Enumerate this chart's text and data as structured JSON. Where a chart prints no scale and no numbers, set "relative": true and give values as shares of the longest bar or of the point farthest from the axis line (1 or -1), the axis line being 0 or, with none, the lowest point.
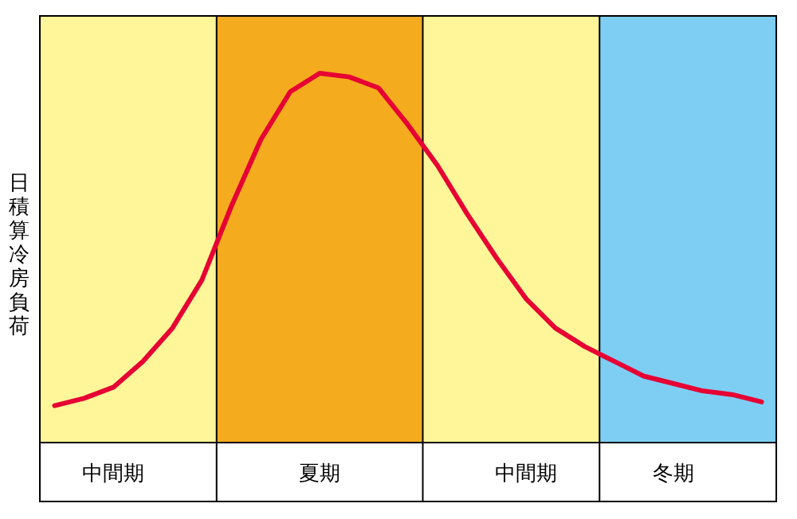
{
  "chart_data": {
    "type": "line",
    "relative": true,
    "ylabel": "日積算冷房負荷",
    "categories": [
      null,
      null,
      "中間期",
      null,
      null,
      null,
      null,
      null,
      null,
      "夏期",
      null,
      null,
      null,
      null,
      null,
      null,
      "中間期",
      null,
      null,
      null,
      null,
      "冬期",
      null,
      null,
      null
    ],
    "series": [
      {
        "color": "#e60033",
        "values": [
          0.1,
          0.12,
          0.15,
          0.22,
          0.31,
          0.44,
          0.64,
          0.82,
          0.95,
          1.0,
          0.99,
          0.96,
          0.86,
          0.75,
          0.62,
          0.5,
          0.39,
          0.31,
          0.26,
          0.22,
          0.18,
          0.16,
          0.14,
          0.13,
          0.11
        ]
      }
    ],
    "line_style": "solid"
  }
}
